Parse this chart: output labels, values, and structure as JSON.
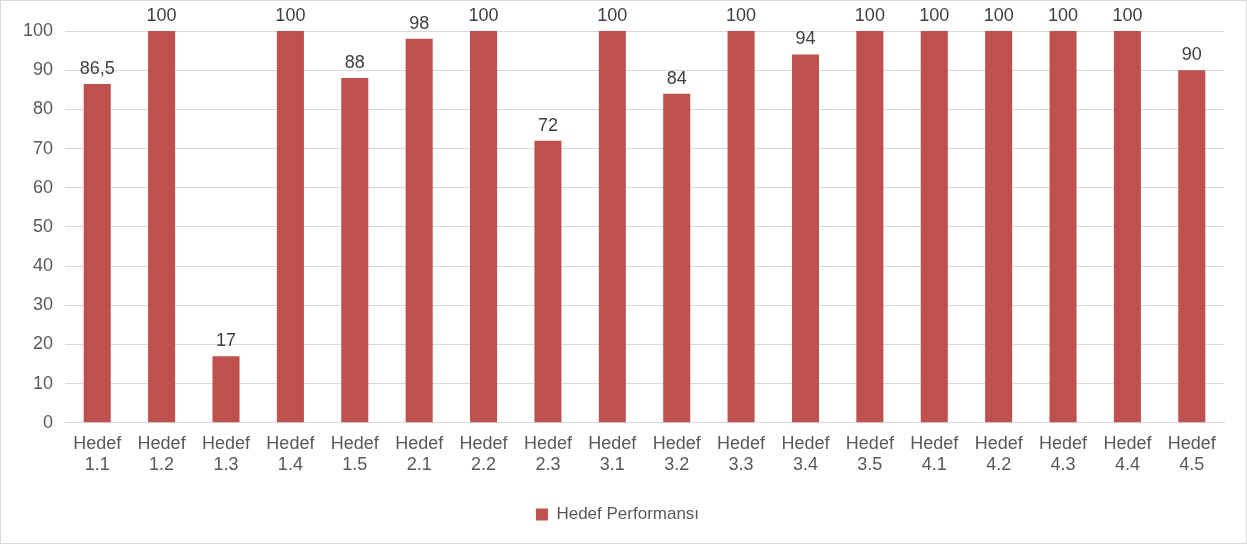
{
  "chart_data": {
    "type": "bar",
    "categories": [
      "Hedef 1.1",
      "Hedef 1.2",
      "Hedef 1.3",
      "Hedef 1.4",
      "Hedef 1.5",
      "Hedef 2.1",
      "Hedef 2.2",
      "Hedef 2.3",
      "Hedef 3.1",
      "Hedef 3.2",
      "Hedef 3.3",
      "Hedef 3.4",
      "Hedef 3.5",
      "Hedef 4.1",
      "Hedef 4.2",
      "Hedef 4.3",
      "Hedef 4.4",
      "Hedef 4.5"
    ],
    "series": [
      {
        "name": "Hedef Performansı",
        "color": "#c0504d",
        "values": [
          86.5,
          100,
          17,
          100,
          88,
          98,
          100,
          72,
          100,
          84,
          100,
          94,
          100,
          100,
          100,
          100,
          100,
          90
        ],
        "value_labels": [
          "86,5",
          "100",
          "17",
          "100",
          "88",
          "98",
          "100",
          "72",
          "100",
          "84",
          "100",
          "94",
          "100",
          "100",
          "100",
          "100",
          "100",
          "90"
        ]
      }
    ],
    "ylim": [
      0,
      100
    ],
    "yticks": [
      0,
      10,
      20,
      30,
      40,
      50,
      60,
      70,
      80,
      90,
      100
    ],
    "grid": "y",
    "legend": "bottom"
  }
}
